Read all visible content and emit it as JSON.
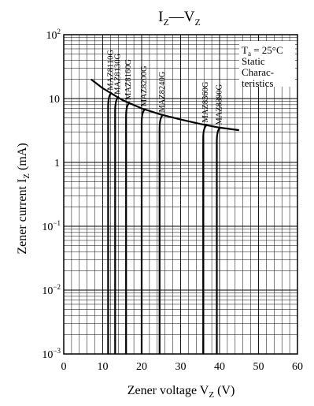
{
  "chart_data": {
    "type": "line",
    "title": {
      "main": "I",
      "main_sub": "Z",
      "sep": "—",
      "second": "V",
      "second_sub": "Z"
    },
    "xlabel": {
      "text": "Zener voltage  V",
      "sub": "Z",
      "unit": "  (V)"
    },
    "ylabel": {
      "text": "Zener current  I",
      "sub": "Z",
      "unit": "  (mA)"
    },
    "xlim": [
      0,
      60
    ],
    "ylim": [
      0.001,
      100
    ],
    "y_scale": "log",
    "grid": true,
    "x_ticks": [
      "0",
      "10",
      "20",
      "30",
      "40",
      "50",
      "60"
    ],
    "y_ticks": [
      {
        "value": 100,
        "base": "10",
        "exp": "2"
      },
      {
        "value": 10,
        "base": "10",
        "exp": ""
      },
      {
        "value": 1,
        "base": "1",
        "exp": ""
      },
      {
        "value": 0.1,
        "base": "10",
        "exp": "−1"
      },
      {
        "value": 0.01,
        "base": "10",
        "exp": "−2"
      },
      {
        "value": 0.001,
        "base": "10",
        "exp": "−3"
      }
    ],
    "annotation": {
      "line1_a": "T",
      "line1_sub": "a",
      "line1_b": " = 25°C",
      "line2": "Static",
      "line3": "Charac-",
      "line4": "teristics"
    },
    "series": [
      {
        "name": "MAZ8110G",
        "vz": 11.4
      },
      {
        "name": "MAZ8130G",
        "vz": 13.2
      },
      {
        "name": "MAZ8160G",
        "vz": 16.0
      },
      {
        "name": "MAZ8200G",
        "vz": 20.0
      },
      {
        "name": "MAZ8240G",
        "vz": 24.6
      },
      {
        "name": "MAZ8360G",
        "vz": 35.8
      },
      {
        "name": "MAZ8390G",
        "vz": 39.3
      }
    ],
    "power_limit_curve": [
      {
        "x": 7,
        "y": 20
      },
      {
        "x": 10,
        "y": 14.5
      },
      {
        "x": 15,
        "y": 9.5
      },
      {
        "x": 20,
        "y": 7
      },
      {
        "x": 25,
        "y": 5.6
      },
      {
        "x": 30,
        "y": 4.7
      },
      {
        "x": 35,
        "y": 4.0
      },
      {
        "x": 40,
        "y": 3.5
      },
      {
        "x": 45,
        "y": 3.2
      }
    ]
  }
}
